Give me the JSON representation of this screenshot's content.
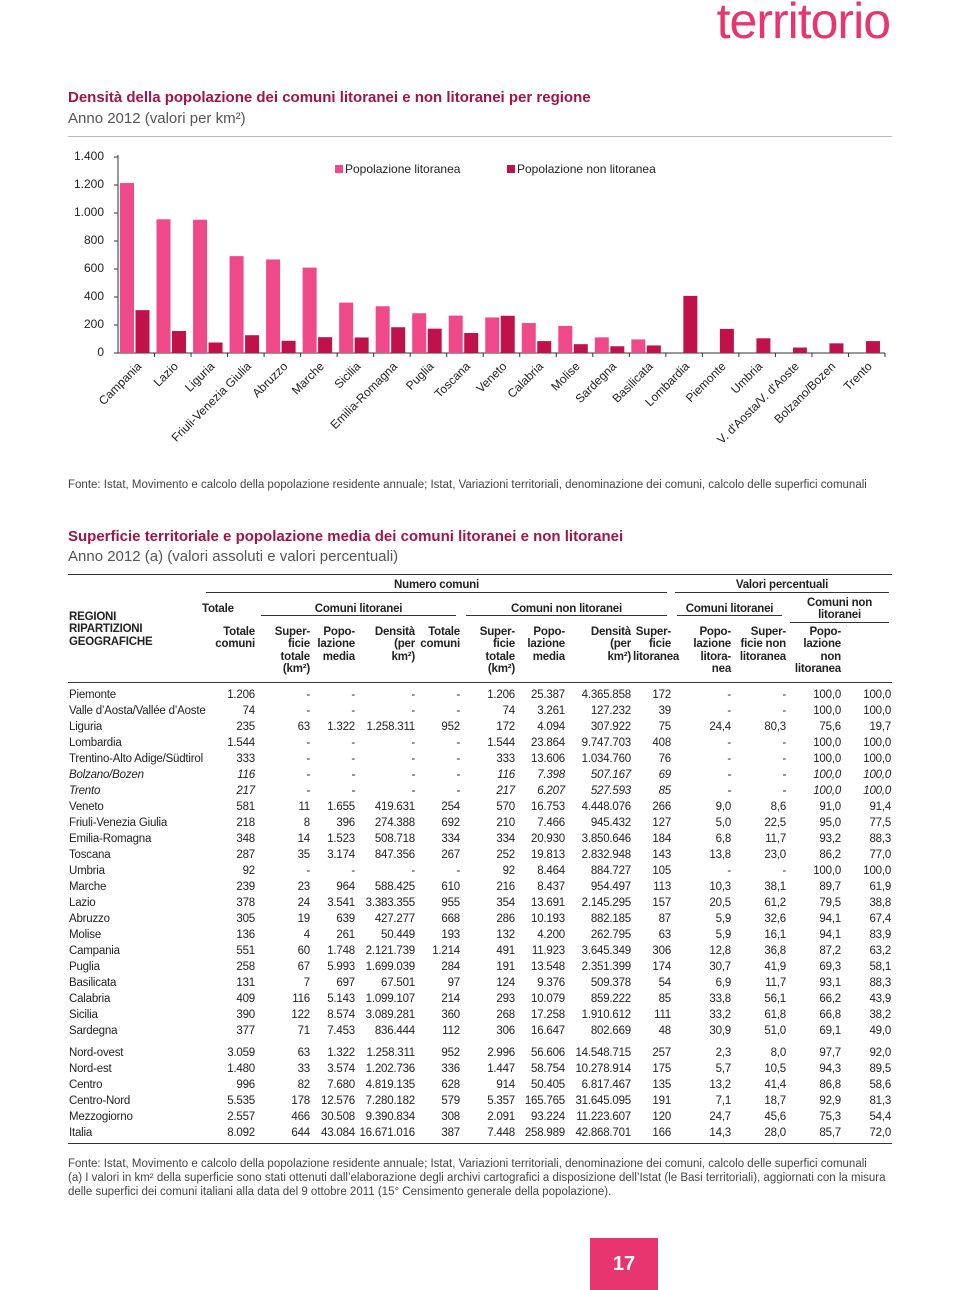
{
  "header": {
    "section": "territorio"
  },
  "chart_data": {
    "type": "bar",
    "title": "Densità della popolazione dei comuni litoranei e non litoranei per regione",
    "subtitle": "Anno 2012 (valori per km²)",
    "categories": [
      "Campania",
      "Lazio",
      "Liguria",
      "Friuli-Venezia Giulia",
      "Abruzzo",
      "Marche",
      "Sicilia",
      "Emilia-Romagna",
      "Puglia",
      "Toscana",
      "Veneto",
      "Calabria",
      "Molise",
      "Sardegna",
      "Basilicata",
      "Lombardia",
      "Piemonte",
      "Umbria",
      "V. d'Aosta/V. d'Aoste",
      "Bolzano/Bozen",
      "Trento"
    ],
    "series": [
      {
        "name": "Popolazione litoranea",
        "color": "#f0498a",
        "values": [
          1214,
          955,
          952,
          692,
          668,
          610,
          360,
          334,
          284,
          267,
          254,
          214,
          193,
          112,
          97,
          null,
          null,
          null,
          null,
          null,
          null
        ]
      },
      {
        "name": "Popolazione non litoranea",
        "color": "#c0114a",
        "values": [
          306,
          157,
          75,
          127,
          87,
          113,
          111,
          184,
          174,
          143,
          266,
          85,
          63,
          48,
          54,
          408,
          172,
          105,
          39,
          69,
          85
        ]
      }
    ],
    "ylim": [
      0,
      1400
    ],
    "yticks": [
      0,
      200,
      400,
      600,
      800,
      {
        "value": 1000,
        "label": "1.000"
      },
      {
        "value": 1200,
        "label": "1.200"
      },
      {
        "value": 1400,
        "label": "1.400"
      }
    ],
    "grid": false,
    "legend": "top"
  },
  "chart_source": "Fonte: Istat, Movimento e calcolo della popolazione residente annuale; Istat, Variazioni territoriali, denominazione dei comuni, calcolo delle superfici comunali",
  "table": {
    "title": "Superficie territoriale e popolazione media dei comuni litoranei e non litoranei",
    "subtitle": "Anno 2012 (a) (valori assoluti e valori percentuali)",
    "stub_header": "REGIONI\nRIPARTIZIONI\nGEOGRAFICHE",
    "group_headers": [
      "Numero comuni",
      "Valori percentuali"
    ],
    "subgroup_headers": [
      "Totale",
      "Comuni litoranei",
      "Comuni non litoranei",
      "Comuni litoranei",
      "Comuni non\nlitoranei"
    ],
    "column_headers": [
      "Totale\ncomuni",
      "Super-\nficie\ntotale\n(km²)",
      "Popo-\nlazione\nmedia",
      "Densità\n(per\nkm²)",
      "Totale\ncomuni",
      "Super-\nficie\ntotale\n(km²)",
      "Popo-\nlazione\nmedia",
      "Densità\n(per\nkm²)",
      "Super-\nficie\nlitoranea",
      "Popo-\nlazione\nlitora-\nnea",
      "Super-\nficie non\nlitoranea",
      "Popo-\nlazione\nnon\nlitoranea"
    ],
    "rows": [
      {
        "cells": [
          "Piemonte",
          "1.206",
          "-",
          "-",
          "-",
          "-",
          "1.206",
          "25.387",
          "4.365.858",
          "172",
          "-",
          "-",
          "100,0",
          "100,0"
        ]
      },
      {
        "cells": [
          "Valle d’Aosta/Vallée d’Aoste",
          "74",
          "-",
          "-",
          "-",
          "-",
          "74",
          "3.261",
          "127.232",
          "39",
          "-",
          "-",
          "100,0",
          "100,0"
        ]
      },
      {
        "cells": [
          "Liguria",
          "235",
          "63",
          "1.322",
          "1.258.311",
          "952",
          "172",
          "4.094",
          "307.922",
          "75",
          "24,4",
          "80,3",
          "75,6",
          "19,7"
        ]
      },
      {
        "cells": [
          "Lombardia",
          "1.544",
          "-",
          "-",
          "-",
          "-",
          "1.544",
          "23.864",
          "9.747.703",
          "408",
          "-",
          "-",
          "100,0",
          "100,0"
        ]
      },
      {
        "cells": [
          "Trentino-Alto Adige/Südtirol",
          "333",
          "-",
          "-",
          "-",
          "-",
          "333",
          "13.606",
          "1.034.760",
          "76",
          "-",
          "-",
          "100,0",
          "100,0"
        ]
      },
      {
        "cells": [
          "Bolzano/Bozen",
          "116",
          "-",
          "-",
          "-",
          "-",
          "116",
          "7.398",
          "507.167",
          "69",
          "-",
          "-",
          "100,0",
          "100,0"
        ],
        "italic": true
      },
      {
        "cells": [
          "Trento",
          "217",
          "-",
          "-",
          "-",
          "-",
          "217",
          "6.207",
          "527.593",
          "85",
          "-",
          "-",
          "100,0",
          "100,0"
        ],
        "italic": true
      },
      {
        "cells": [
          "Veneto",
          "581",
          "11",
          "1.655",
          "419.631",
          "254",
          "570",
          "16.753",
          "4.448.076",
          "266",
          "9,0",
          "8,6",
          "91,0",
          "91,4"
        ]
      },
      {
        "cells": [
          "Friuli-Venezia Giulia",
          "218",
          "8",
          "396",
          "274.388",
          "692",
          "210",
          "7.466",
          "945.432",
          "127",
          "5,0",
          "22,5",
          "95,0",
          "77,5"
        ]
      },
      {
        "cells": [
          "Emilia-Romagna",
          "348",
          "14",
          "1.523",
          "508.718",
          "334",
          "334",
          "20.930",
          "3.850.646",
          "184",
          "6,8",
          "11,7",
          "93,2",
          "88,3"
        ]
      },
      {
        "cells": [
          "Toscana",
          "287",
          "35",
          "3.174",
          "847.356",
          "267",
          "252",
          "19.813",
          "2.832.948",
          "143",
          "13,8",
          "23,0",
          "86,2",
          "77,0"
        ]
      },
      {
        "cells": [
          "Umbria",
          "92",
          "-",
          "-",
          "-",
          "-",
          "92",
          "8.464",
          "884.727",
          "105",
          "-",
          "-",
          "100,0",
          "100,0"
        ]
      },
      {
        "cells": [
          "Marche",
          "239",
          "23",
          "964",
          "588.425",
          "610",
          "216",
          "8.437",
          "954.497",
          "113",
          "10,3",
          "38,1",
          "89,7",
          "61,9"
        ]
      },
      {
        "cells": [
          "Lazio",
          "378",
          "24",
          "3.541",
          "3.383.355",
          "955",
          "354",
          "13.691",
          "2.145.295",
          "157",
          "20,5",
          "61,2",
          "79,5",
          "38,8"
        ]
      },
      {
        "cells": [
          "Abruzzo",
          "305",
          "19",
          "639",
          "427.277",
          "668",
          "286",
          "10.193",
          "882.185",
          "87",
          "5,9",
          "32,6",
          "94,1",
          "67,4"
        ]
      },
      {
        "cells": [
          "Molise",
          "136",
          "4",
          "261",
          "50.449",
          "193",
          "132",
          "4.200",
          "262.795",
          "63",
          "5,9",
          "16,1",
          "94,1",
          "83,9"
        ]
      },
      {
        "cells": [
          "Campania",
          "551",
          "60",
          "1.748",
          "2.121.739",
          "1.214",
          "491",
          "11.923",
          "3.645.349",
          "306",
          "12,8",
          "36,8",
          "87,2",
          "63,2"
        ]
      },
      {
        "cells": [
          "Puglia",
          "258",
          "67",
          "5.993",
          "1.699.039",
          "284",
          "191",
          "13.548",
          "2.351.399",
          "174",
          "30,7",
          "41,9",
          "69,3",
          "58,1"
        ]
      },
      {
        "cells": [
          "Basilicata",
          "131",
          "7",
          "697",
          "67.501",
          "97",
          "124",
          "9.376",
          "509.378",
          "54",
          "6,9",
          "11,7",
          "93,1",
          "88,3"
        ]
      },
      {
        "cells": [
          "Calabria",
          "409",
          "116",
          "5.143",
          "1.099.107",
          "214",
          "293",
          "10.079",
          "859.222",
          "85",
          "33,8",
          "56,1",
          "66,2",
          "43,9"
        ]
      },
      {
        "cells": [
          "Sicilia",
          "390",
          "122",
          "8.574",
          "3.089.281",
          "360",
          "268",
          "17.258",
          "1.910.612",
          "111",
          "33,2",
          "61,8",
          "66,8",
          "38,2"
        ]
      },
      {
        "cells": [
          "Sardegna",
          "377",
          "71",
          "7.453",
          "836.444",
          "112",
          "306",
          "16.647",
          "802.669",
          "48",
          "30,9",
          "51,0",
          "69,1",
          "49,0"
        ]
      }
    ],
    "summary_rows": [
      {
        "cells": [
          "Nord-ovest",
          "3.059",
          "63",
          "1.322",
          "1.258.311",
          "952",
          "2.996",
          "56.606",
          "14.548.715",
          "257",
          "2,3",
          "8,0",
          "97,7",
          "92,0"
        ]
      },
      {
        "cells": [
          "Nord-est",
          "1.480",
          "33",
          "3.574",
          "1.202.736",
          "336",
          "1.447",
          "58.754",
          "10.278.914",
          "175",
          "5,7",
          "10,5",
          "94,3",
          "89,5"
        ]
      },
      {
        "cells": [
          "Centro",
          "996",
          "82",
          "7.680",
          "4.819.135",
          "628",
          "914",
          "50.405",
          "6.817.467",
          "135",
          "13,2",
          "41,4",
          "86,8",
          "58,6"
        ]
      },
      {
        "cells": [
          "Centro-Nord",
          "5.535",
          "178",
          "12.576",
          "7.280.182",
          "579",
          "5.357",
          "165.765",
          "31.645.095",
          "191",
          "7,1",
          "18,7",
          "92,9",
          "81,3"
        ]
      },
      {
        "cells": [
          "Mezzogiorno",
          "2.557",
          "466",
          "30.508",
          "9.390.834",
          "308",
          "2.091",
          "93.224",
          "11.223.607",
          "120",
          "24,7",
          "45,6",
          "75,3",
          "54,4"
        ]
      },
      {
        "cells": [
          "Italia",
          "8.092",
          "644",
          "43.084",
          "16.671.016",
          "387",
          "7.448",
          "258.989",
          "42.868.701",
          "166",
          "14,3",
          "28,0",
          "85,7",
          "72,0"
        ]
      }
    ]
  },
  "notes": [
    "Fonte: Istat, Movimento e calcolo della popolazione residente annuale; Istat, Variazioni territoriali, denominazione dei comuni, calcolo delle superfici comunali",
    "(a) I valori in km² della superficie sono stati ottenuti dall’elaborazione degli archivi cartografici a disposizione dell’Istat (le Basi territoriali), aggiornati con la misura delle superfici dei comuni italiani alla data del 9 ottobre 2011 (15° Censimento generale della popolazione)."
  ],
  "page_number": "17"
}
